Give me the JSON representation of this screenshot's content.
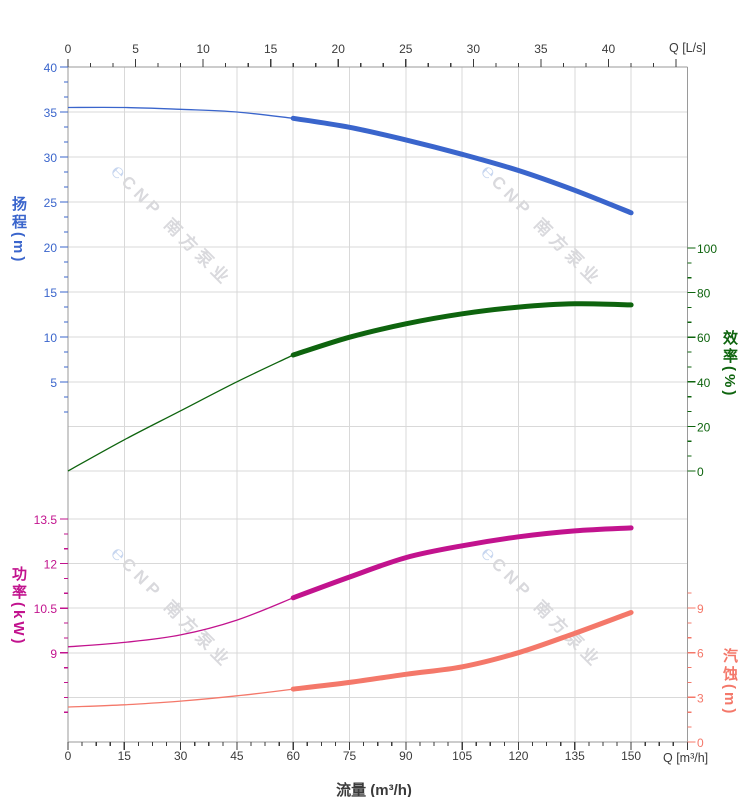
{
  "chart_data": {
    "type": "line",
    "title": "",
    "x": {
      "bottom": {
        "label": "流量 (m³/h)",
        "unit": "Q [m³/h]",
        "ticks": [
          0,
          15,
          30,
          45,
          60,
          75,
          90,
          105,
          120,
          135,
          150
        ],
        "range": [
          0,
          165
        ]
      },
      "top": {
        "unit": "Q [L/s]",
        "ticks": [
          0,
          5,
          10,
          15,
          20,
          25,
          30,
          35,
          40
        ],
        "range": [
          0,
          45.8
        ]
      }
    },
    "axes": {
      "head": {
        "title": "扬程(m)",
        "color": "#3a65cc",
        "ticks": [
          40,
          35,
          30,
          25,
          20,
          15,
          10,
          5
        ],
        "range": [
          0,
          40
        ]
      },
      "efficiency": {
        "title": "效率(%)",
        "color": "#0e640e",
        "ticks": [
          100,
          80,
          60,
          40,
          20,
          0
        ],
        "range": [
          0,
          100
        ]
      },
      "power": {
        "title": "功率(kW)",
        "color": "#c2138e",
        "ticks": [
          13.5,
          12,
          10.5,
          9
        ],
        "range": [
          6,
          13.5
        ]
      },
      "npsh": {
        "title": "汽蚀(m)",
        "color": "#f4786a",
        "ticks": [
          9,
          6,
          3,
          0
        ],
        "range": [
          0,
          9
        ]
      }
    },
    "series": [
      {
        "name": "扬程",
        "key": "head",
        "axis": "head",
        "color": "#3a65cc",
        "bold_from": 60,
        "x": [
          0,
          15,
          30,
          45,
          60,
          75,
          90,
          105,
          120,
          135,
          150
        ],
        "y": [
          35.5,
          35.5,
          35.3,
          35.0,
          34.3,
          33.3,
          31.9,
          30.3,
          28.5,
          26.3,
          23.8
        ]
      },
      {
        "name": "效率",
        "key": "efficiency",
        "axis": "efficiency",
        "color": "#0e640e",
        "bold_from": 60,
        "x": [
          0,
          15,
          30,
          45,
          60,
          75,
          90,
          105,
          120,
          135,
          150
        ],
        "y": [
          0,
          14,
          27,
          40,
          52,
          60,
          66,
          70.5,
          73.5,
          75,
          74.5
        ]
      },
      {
        "name": "功率",
        "key": "power",
        "axis": "power",
        "color": "#c2138e",
        "bold_from": 60,
        "x": [
          0,
          15,
          30,
          45,
          60,
          75,
          90,
          105,
          120,
          135,
          150
        ],
        "y": [
          9.2,
          9.35,
          9.6,
          10.1,
          10.85,
          11.55,
          12.2,
          12.6,
          12.9,
          13.1,
          13.2
        ]
      },
      {
        "name": "汽蚀",
        "key": "npsh",
        "axis": "npsh",
        "color": "#f4786a",
        "bold_from": 60,
        "x": [
          0,
          15,
          30,
          45,
          60,
          75,
          90,
          105,
          120,
          135,
          150
        ],
        "y": [
          2.35,
          2.5,
          2.75,
          3.1,
          3.55,
          4.0,
          4.55,
          5.05,
          6.0,
          7.3,
          8.7
        ]
      }
    ],
    "grid": "on",
    "legend": "none"
  },
  "watermark": {
    "logo": "℮",
    "text": "CNP 南方泵业"
  },
  "colors": {
    "grid": "#d9d9d9",
    "border": "#9a9a9a",
    "xy_tick_text": "#3b3b3b",
    "background": "#ffffff"
  }
}
